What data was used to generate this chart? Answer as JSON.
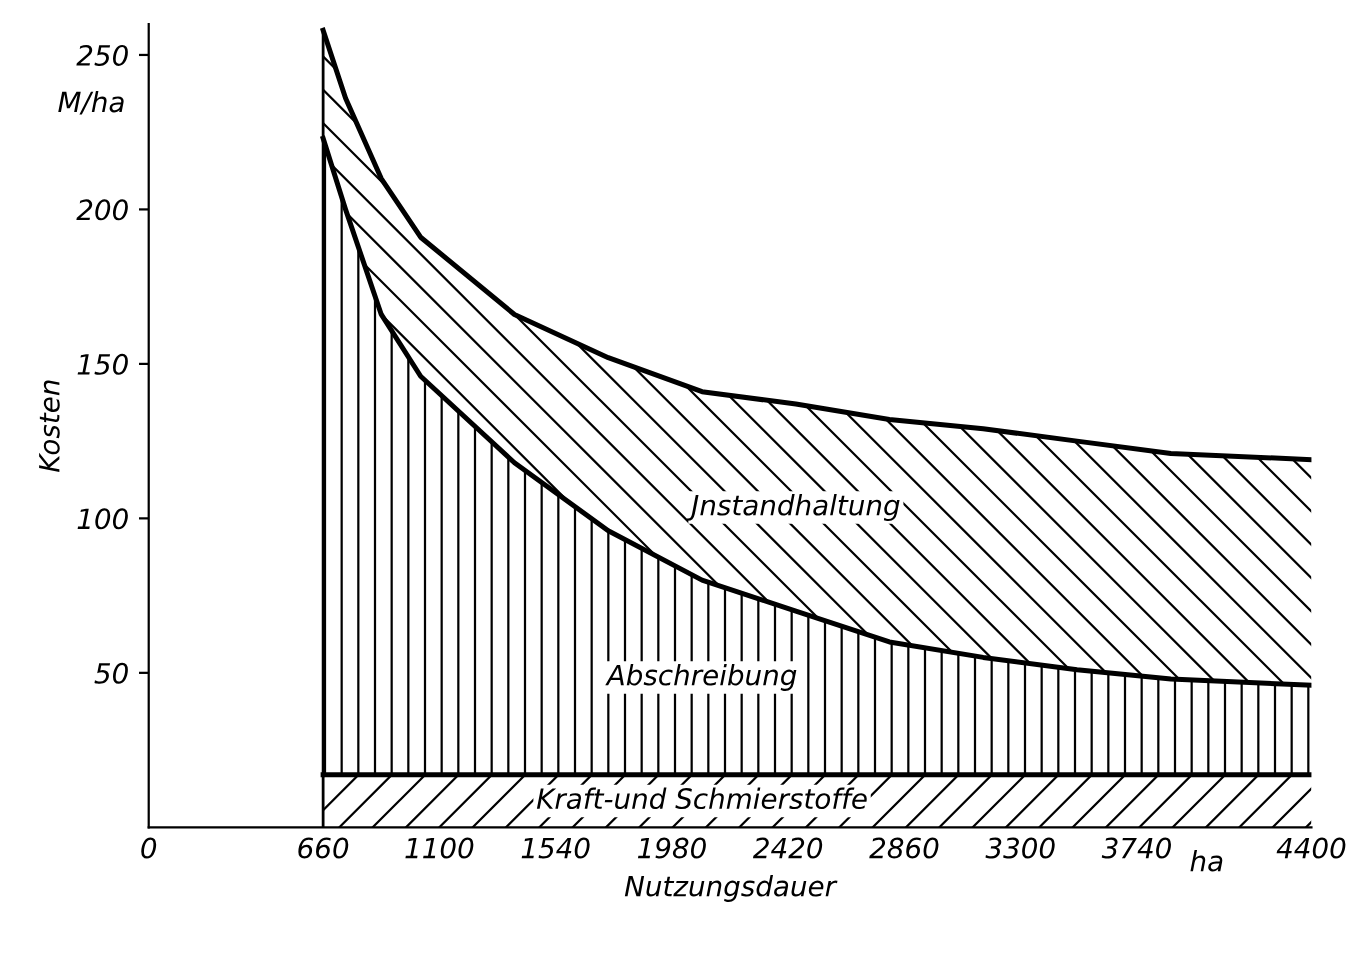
{
  "chart_data": {
    "type": "area",
    "stacked": true,
    "xlabel": "Nutzungsdauer",
    "ylabel": "Kosten",
    "x": [
      660,
      745,
      880,
      1029,
      1384,
      1739,
      2094,
      2449,
      2803,
      3158,
      3513,
      3868,
      4400
    ],
    "series": [
      {
        "name": "Kraft-und Schmierstoffe",
        "color": "#000000",
        "values": [
          17,
          17,
          17,
          17,
          17,
          17,
          17,
          17,
          17,
          17,
          17,
          17,
          17
        ]
      },
      {
        "name": "Abschreibung",
        "color": "#000000",
        "values": [
          206,
          183,
          149,
          129,
          101,
          79,
          63,
          53,
          43,
          38,
          34,
          31,
          29
        ]
      },
      {
        "name": "Jnstandhaltung",
        "color": "#000000",
        "values": [
          35,
          36,
          44,
          45,
          48,
          56,
          61,
          67,
          72,
          74,
          74,
          73,
          73
        ]
      }
    ],
    "xlim": [
      0,
      4400
    ],
    "xticks": [
      0,
      660,
      1100,
      1540,
      1980,
      2420,
      2860,
      3300,
      3740,
      4400
    ],
    "ylim": [
      0,
      260
    ],
    "yticks": [
      50,
      100,
      150,
      200,
      250
    ],
    "annotations": [
      "M/ha",
      "ha"
    ]
  }
}
